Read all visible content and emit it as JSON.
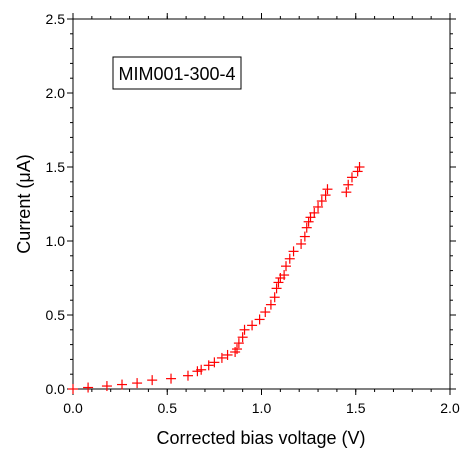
{
  "chart_data": {
    "type": "scatter",
    "xlabel": "Corrected bias voltage (V)",
    "ylabel": "Current (μA)",
    "xlim": [
      0.0,
      2.0
    ],
    "ylim": [
      0.0,
      2.5
    ],
    "x_ticks": [
      "0.0",
      "0.5",
      "1.0",
      "1.5",
      "2.0"
    ],
    "y_ticks": [
      "0.0",
      "0.5",
      "1.0",
      "1.5",
      "2.0",
      "2.5"
    ],
    "annotation": "MIM001-300-4",
    "marker": "plus",
    "marker_color": "#ff0000",
    "grid": false,
    "series": [
      {
        "x": [
          0.0,
          0.08,
          0.18,
          0.26,
          0.34,
          0.42,
          0.52,
          0.61,
          0.66,
          0.68,
          0.72,
          0.75,
          0.79,
          0.82,
          0.86,
          0.87,
          0.88,
          0.9,
          0.91,
          0.95,
          0.99,
          1.02,
          1.05,
          1.07,
          1.08,
          1.09,
          1.1,
          1.12,
          1.13,
          1.15,
          1.17,
          1.21,
          1.23,
          1.24,
          1.25,
          1.26,
          1.28,
          1.3,
          1.32,
          1.34,
          1.35,
          1.45,
          1.46,
          1.48,
          1.51,
          1.52
        ],
        "y": [
          0.0,
          0.01,
          0.02,
          0.03,
          0.04,
          0.06,
          0.07,
          0.09,
          0.12,
          0.13,
          0.16,
          0.18,
          0.21,
          0.23,
          0.25,
          0.27,
          0.31,
          0.35,
          0.4,
          0.43,
          0.47,
          0.52,
          0.57,
          0.62,
          0.68,
          0.72,
          0.75,
          0.77,
          0.83,
          0.88,
          0.93,
          0.98,
          1.03,
          1.09,
          1.13,
          1.16,
          1.19,
          1.23,
          1.27,
          1.31,
          1.35,
          1.33,
          1.38,
          1.43,
          1.47,
          1.5
        ]
      }
    ]
  }
}
